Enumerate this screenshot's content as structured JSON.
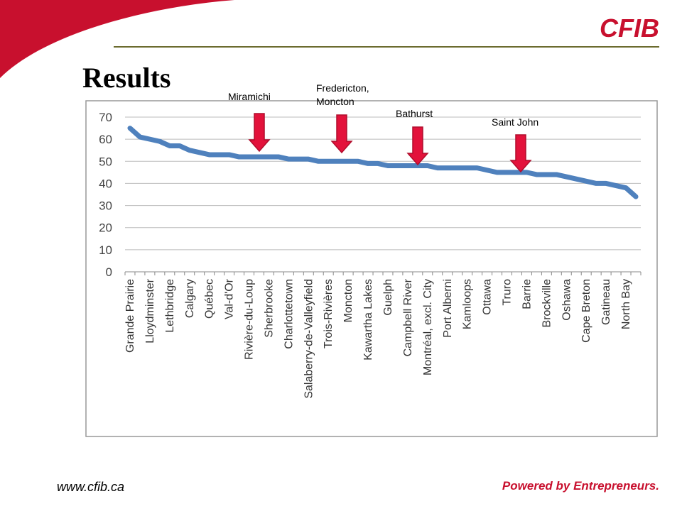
{
  "slide": {
    "logo": "CFIB",
    "title": "Results",
    "footer_url": "www.cfib.ca",
    "footer_tagline": "Powered by Entrepreneurs."
  },
  "chart_data": {
    "type": "line",
    "color": "#4f81bd",
    "grid": true,
    "ylim": [
      0,
      70
    ],
    "yticks": [
      0,
      10,
      20,
      30,
      40,
      50,
      60,
      70
    ],
    "categories": [
      "Grande Prairie",
      null,
      "Lloydminster",
      null,
      "Lethbridge",
      null,
      "Calgary",
      null,
      "Québec",
      null,
      "Val-d'Or",
      null,
      "Rivière-du-Loup",
      null,
      "Sherbrooke",
      null,
      "Charlottetown",
      null,
      "Salaberry-de-Valleyfield",
      null,
      "Trois-Rivières",
      null,
      "Moncton",
      null,
      "Kawartha Lakes",
      null,
      "Guelph",
      null,
      "Campbell River",
      null,
      "Montréal, excl. City",
      null,
      "Port Alberni",
      null,
      "Kamloops",
      null,
      "Ottawa",
      null,
      "Truro",
      null,
      "Barrie",
      null,
      "Brockville",
      null,
      "Oshawa",
      null,
      "Cape Breton",
      null,
      "Gatineau",
      null,
      "North Bay",
      null
    ],
    "values": [
      65,
      61,
      60,
      59,
      57,
      57,
      55,
      54,
      53,
      53,
      53,
      52,
      52,
      52,
      52,
      52,
      51,
      51,
      51,
      50,
      50,
      50,
      50,
      50,
      49,
      49,
      48,
      48,
      48,
      48,
      48,
      47,
      47,
      47,
      47,
      47,
      46,
      45,
      45,
      45,
      45,
      44,
      44,
      44,
      43,
      42,
      41,
      40,
      40,
      39,
      38,
      34
    ],
    "annotations": [
      "Miramichi",
      "Fredericton, Moncton",
      "Bathurst",
      "Saint John"
    ]
  }
}
